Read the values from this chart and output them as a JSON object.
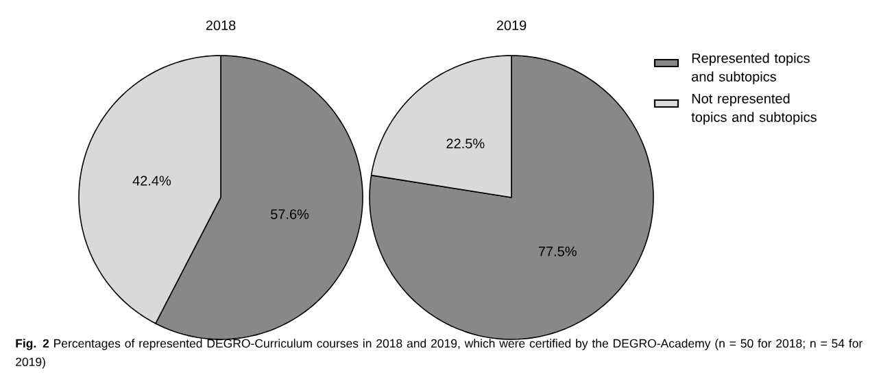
{
  "chart_data": [
    {
      "type": "pie",
      "title": "2018",
      "values": [
        57.6,
        42.4
      ],
      "colors": [
        "#888888",
        "#d9d9d9"
      ],
      "value_labels": [
        "57.6%",
        "42.4%"
      ]
    },
    {
      "type": "pie",
      "title": "2019",
      "categories": [
        "Represented topics and subtopics",
        "Not represented topics and subtopics"
      ],
      "values": [
        77.5,
        22.5
      ],
      "colors": [
        "#888888",
        "#d9d9d9"
      ],
      "value_labels": [
        "77.5%",
        "22.5%"
      ],
      "legend": "right",
      "annotations": [
        "**Fig. 2** Percentages of represented DEGRO-Curriculum courses in 2018 and 2019, which were certified by the DEGRO-Academy (n = 50 for 2018; n = 54 for 2019)"
      ]
    }
  ]
}
